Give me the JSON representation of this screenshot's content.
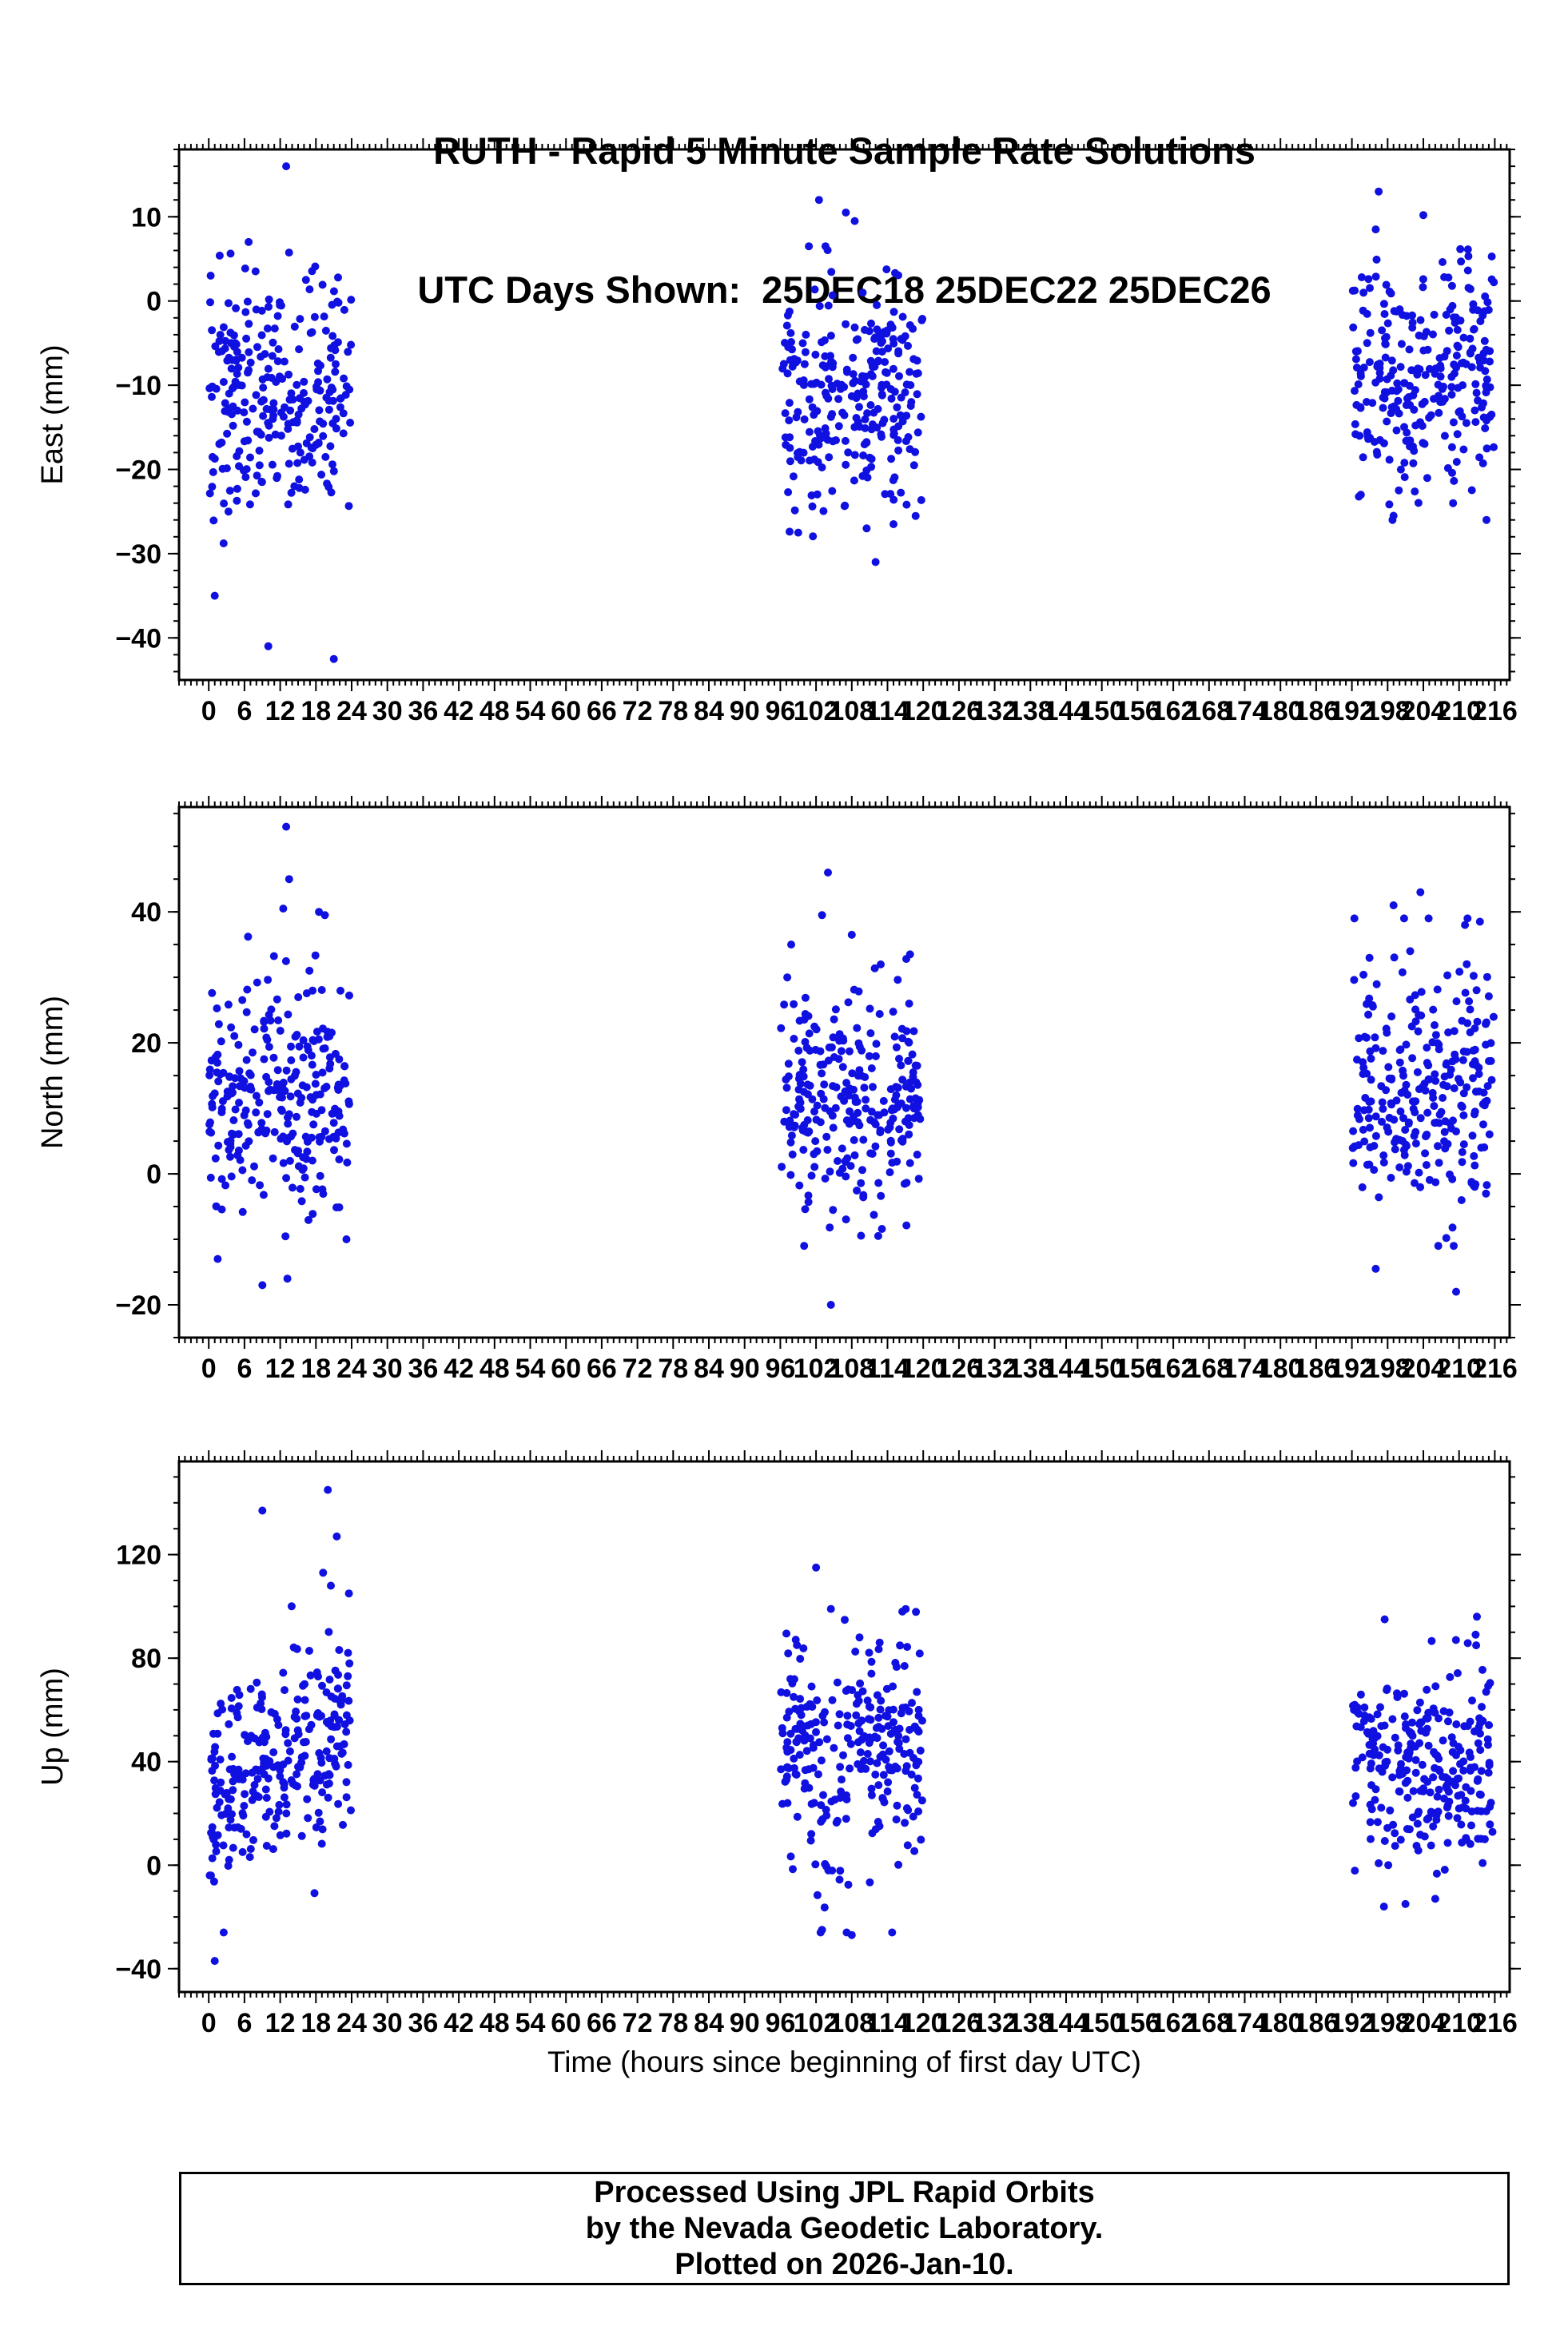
{
  "title": {
    "line1": "RUTH - Rapid 5 Minute Sample Rate Solutions",
    "line2": "UTC Days Shown:  25DEC18 25DEC22 25DEC26"
  },
  "xlabel": "Time (hours since beginning of first day UTC)",
  "footer": {
    "line1": "Processed Using JPL Rapid Orbits",
    "line2": "by the Nevada Geodetic Laboratory.",
    "line3": "Plotted on 2026-Jan-10."
  },
  "marker": {
    "color": "#1010e0",
    "radius": 5
  },
  "axis_color": "#000000",
  "seed": 20261,
  "chart_data": [
    {
      "type": "scatter",
      "name": "east",
      "ylabel": "East (mm)",
      "ylim": [
        -45,
        18
      ],
      "yticks": [
        10,
        0,
        -10,
        -20,
        -30,
        -40
      ],
      "ytick_minor_step": 2,
      "xlim": [
        -5,
        218.5
      ],
      "xtick_range": [
        0,
        216
      ],
      "xtick_major_step": 6,
      "xtick_minor_step": 1,
      "clusters": [
        {
          "x_range": [
            0.1,
            23.9
          ],
          "n": 265,
          "mean": -11.5,
          "sd": 7.8,
          "clamp": [
            -31,
            7
          ]
        },
        {
          "x_range": [
            96.1,
            119.9
          ],
          "n": 265,
          "mean": -11.5,
          "sd": 7.2,
          "clamp": [
            -28,
            6.5
          ]
        },
        {
          "x_range": [
            192.1,
            215.9
          ],
          "n": 265,
          "mean": -9.5,
          "sd": 7.2,
          "clamp": [
            -26,
            7.5
          ]
        }
      ],
      "outliers": [
        [
          13,
          16
        ],
        [
          1,
          -35
        ],
        [
          10,
          -41
        ],
        [
          21,
          -42.5
        ],
        [
          102.5,
          12
        ],
        [
          107,
          10.5
        ],
        [
          108.5,
          9.5
        ],
        [
          112,
          -31
        ],
        [
          99,
          -27.5
        ],
        [
          110.5,
          -27
        ],
        [
          115,
          -26.5
        ],
        [
          196.5,
          13
        ],
        [
          204,
          10.2
        ],
        [
          196,
          8.5
        ],
        [
          209,
          -24
        ],
        [
          199,
          -25.5
        ],
        [
          193.5,
          -23
        ]
      ]
    },
    {
      "type": "scatter",
      "name": "north",
      "ylabel": "North (mm)",
      "ylim": [
        -25,
        56
      ],
      "yticks": [
        40,
        20,
        0,
        -20
      ],
      "ytick_minor_step": 5,
      "xlim": [
        -5,
        218.5
      ],
      "xtick_range": [
        0,
        216
      ],
      "xtick_major_step": 6,
      "xtick_minor_step": 1,
      "clusters": [
        {
          "x_range": [
            0.1,
            23.9
          ],
          "n": 265,
          "mean": 12.5,
          "sd": 9,
          "clamp": [
            -10,
            39
          ]
        },
        {
          "x_range": [
            96.1,
            119.9
          ],
          "n": 265,
          "mean": 13,
          "sd": 9,
          "clamp": [
            -9.5,
            37
          ]
        },
        {
          "x_range": [
            192.1,
            215.9
          ],
          "n": 265,
          "mean": 13,
          "sd": 9.5,
          "clamp": [
            -11,
            39
          ]
        }
      ],
      "outliers": [
        [
          13,
          53
        ],
        [
          13.5,
          45
        ],
        [
          12.5,
          40.5
        ],
        [
          18.5,
          40
        ],
        [
          19.5,
          39.5
        ],
        [
          9,
          -17
        ],
        [
          13.2,
          -16
        ],
        [
          1.5,
          -13
        ],
        [
          104,
          46
        ],
        [
          103,
          39.5
        ],
        [
          108,
          36.5
        ],
        [
          104.5,
          -20
        ],
        [
          100,
          -11
        ],
        [
          199,
          41
        ],
        [
          203.5,
          43
        ],
        [
          211,
          38
        ],
        [
          213.5,
          38.5
        ],
        [
          209.5,
          -18
        ],
        [
          196,
          -14.5
        ]
      ]
    },
    {
      "type": "scatter",
      "name": "up",
      "ylabel": "Up (mm)",
      "ylim": [
        -49,
        156
      ],
      "yticks": [
        120,
        80,
        40,
        0,
        -40
      ],
      "ytick_minor_step": 10,
      "xlim": [
        -5,
        218.5
      ],
      "xtick_range": [
        0,
        216
      ],
      "xtick_major_step": 6,
      "xtick_minor_step": 1,
      "clusters": [
        {
          "x_range": [
            0.1,
            23.9
          ],
          "n": 265,
          "mean": 27,
          "mean_end": 58,
          "sd": 20,
          "clamp": [
            -22,
            105
          ]
        },
        {
          "x_range": [
            96.1,
            119.9
          ],
          "n": 265,
          "mean": 44,
          "sd": 23,
          "clamp": [
            -26,
            100
          ]
        },
        {
          "x_range": [
            192.1,
            215.9
          ],
          "n": 265,
          "mean": 40,
          "sd": 19,
          "clamp": [
            -16,
            93
          ]
        }
      ],
      "outliers": [
        [
          9,
          137
        ],
        [
          20,
          145
        ],
        [
          21.5,
          127
        ],
        [
          19.2,
          113
        ],
        [
          20.5,
          108
        ],
        [
          1,
          -37
        ],
        [
          2.5,
          -26
        ],
        [
          102,
          115
        ],
        [
          104.5,
          99
        ],
        [
          116.5,
          98
        ],
        [
          103,
          -25
        ],
        [
          108,
          -27
        ],
        [
          197.5,
          95
        ],
        [
          213,
          96
        ],
        [
          201,
          -15
        ],
        [
          206,
          -13
        ]
      ]
    }
  ]
}
